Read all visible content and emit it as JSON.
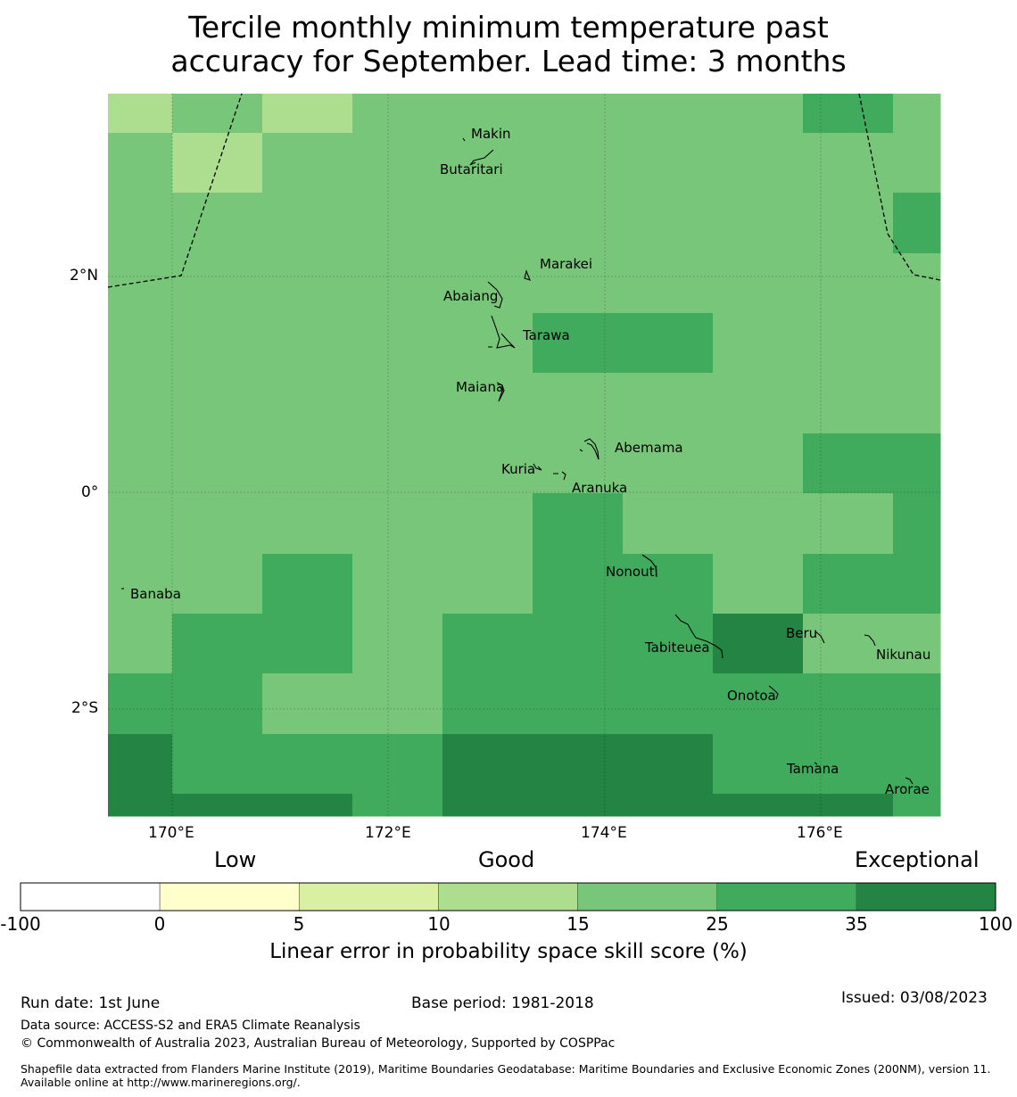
{
  "title": {
    "line1": "Tercile monthly minimum temperature past",
    "line2": "accuracy for September. Lead time: 3 months"
  },
  "map": {
    "lat_labels": [
      "2°N",
      "0°",
      "2°S"
    ],
    "lon_labels": [
      "170°E",
      "172°E",
      "174°E",
      "176°E"
    ],
    "islands": [
      {
        "name": "Makin"
      },
      {
        "name": "Butaritari"
      },
      {
        "name": "Marakei"
      },
      {
        "name": "Abaiang"
      },
      {
        "name": "Tarawa"
      },
      {
        "name": "Maiana"
      },
      {
        "name": "Abemama"
      },
      {
        "name": "Kuria"
      },
      {
        "name": "Aranuka"
      },
      {
        "name": "Nonouti"
      },
      {
        "name": "Banaba"
      },
      {
        "name": "Beru"
      },
      {
        "name": "Tabiteuea"
      },
      {
        "name": "Nikunau"
      },
      {
        "name": "Onotoa"
      },
      {
        "name": "Tamana"
      },
      {
        "name": "Arorae"
      }
    ],
    "skill_grid_category_index_rows": [
      [
        3,
        4,
        3,
        4,
        4,
        4,
        4,
        4,
        5,
        4
      ],
      [
        4,
        3,
        4,
        4,
        4,
        4,
        4,
        4,
        4,
        4
      ],
      [
        4,
        4,
        4,
        4,
        4,
        4,
        4,
        4,
        4,
        5
      ],
      [
        4,
        4,
        4,
        4,
        4,
        4,
        4,
        4,
        4,
        4
      ],
      [
        4,
        4,
        4,
        4,
        4,
        5,
        5,
        4,
        4,
        4
      ],
      [
        4,
        4,
        4,
        4,
        4,
        4,
        4,
        4,
        4,
        4
      ],
      [
        4,
        4,
        4,
        4,
        4,
        4,
        4,
        4,
        5,
        5
      ],
      [
        4,
        4,
        4,
        4,
        4,
        5,
        4,
        4,
        4,
        5
      ],
      [
        4,
        4,
        5,
        4,
        4,
        5,
        5,
        4,
        5,
        5
      ],
      [
        4,
        5,
        5,
        4,
        5,
        5,
        5,
        6,
        4,
        4
      ],
      [
        5,
        5,
        4,
        4,
        5,
        5,
        5,
        5,
        5,
        5
      ],
      [
        6,
        5,
        5,
        5,
        6,
        6,
        6,
        5,
        5,
        5
      ],
      [
        6,
        6,
        6,
        5,
        6,
        6,
        6,
        6,
        6,
        5
      ]
    ]
  },
  "colorbar": {
    "category_labels": {
      "low": "Low",
      "good": "Good",
      "exceptional": "Exceptional"
    },
    "ticks": [
      "-100",
      "0",
      "5",
      "10",
      "15",
      "25",
      "35",
      "100"
    ],
    "colors": [
      "#ffffff",
      "#ffffcc",
      "#d9f0a3",
      "#addd8e",
      "#78c679",
      "#41ab5d",
      "#238443"
    ],
    "title": "Linear error in probability space skill score (%)"
  },
  "footer": {
    "run_date": "Run date: 1st June",
    "base_period": "Base period: 1981-2018",
    "issued": "Issued: 03/08/2023",
    "data_source": "Data source: ACCESS-S2 and ERA5 Climate Reanalysis",
    "copyright": "© Commonwealth of Australia 2023, Australian Bureau of Meteorology, Supported by COSPPac",
    "shapefile": "Shapefile data extracted from Flanders Marine Institute (2019), Maritime Boundaries Geodatabase: Maritime Boundaries and Exclusive Economic Zones (200NM), version 11. Available online at http://www.marineregions.org/."
  }
}
